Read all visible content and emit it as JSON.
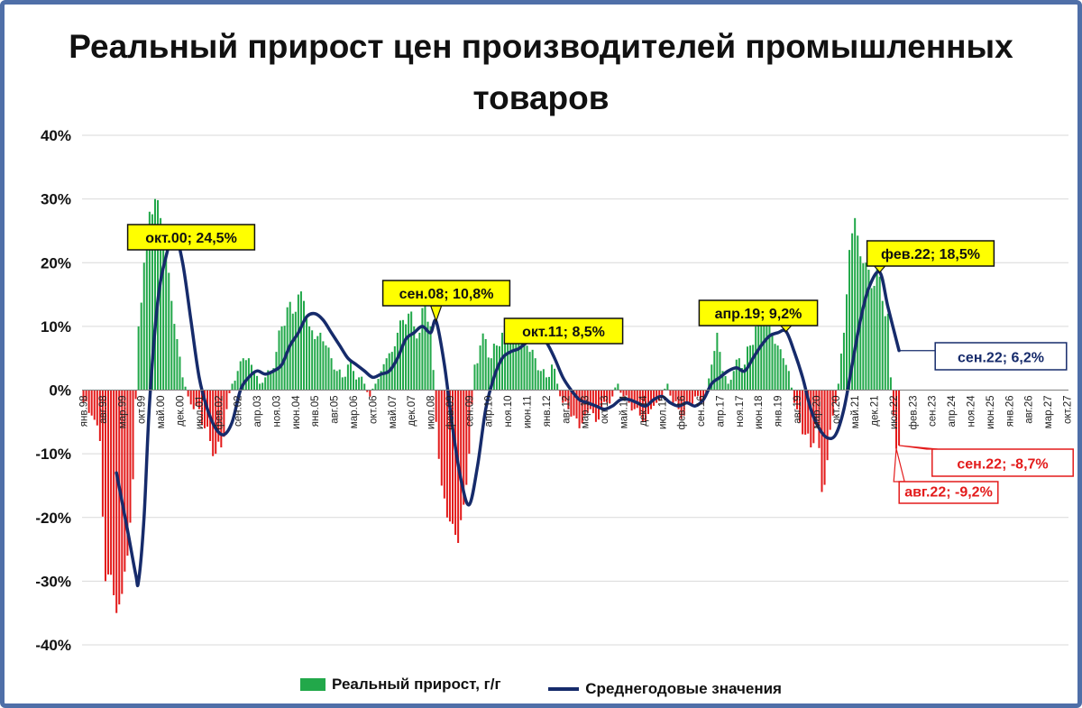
{
  "title": "Реальный прирост цен производителей промышленных товаров",
  "legend": {
    "bars_label": "Реальный прирост, г/г",
    "line_label": "Среднегодовые значения"
  },
  "colors": {
    "positive_bar": "#22a84a",
    "negative_bar": "#e31b1b",
    "line": "#162b6b",
    "callout_fill": "#ffff00",
    "grid": "#d9d9d9"
  },
  "chart_data": {
    "type": "bar+line",
    "title": "Реальный прирост цен производителей промышленных товаров",
    "yticks": [
      "40%",
      "30%",
      "20%",
      "10%",
      "0%",
      "-10%",
      "-20%",
      "-30%",
      "-40%"
    ],
    "ylim": [
      -40,
      40
    ],
    "grid": true,
    "legend_position": "bottom",
    "x_tick_labels": [
      "янв.98",
      "авг.98",
      "мар.99",
      "окт.99",
      "май.00",
      "дек.00",
      "июл.01",
      "фев.02",
      "сен.02",
      "апр.03",
      "ноя.03",
      "июн.04",
      "янв.05",
      "авг.05",
      "мар.06",
      "окт.06",
      "май.07",
      "дек.07",
      "июл.08",
      "фев.09",
      "сен.09",
      "апр.10",
      "ноя.10",
      "июн.11",
      "янв.12",
      "авг.12",
      "мар.13",
      "окт.13",
      "май.14",
      "дек.14",
      "июл.15",
      "фев.16",
      "сен.16",
      "апр.17",
      "ноя.17",
      "июн.18",
      "янв.19",
      "авг.19",
      "мар.20",
      "окт.20",
      "май.21",
      "дек.21",
      "июл.22",
      "фев.23",
      "сен.23",
      "апр.24",
      "ноя.24",
      "июн.25",
      "янв.26",
      "авг.26",
      "мар.27",
      "окт.27"
    ],
    "x_start": "1998-01",
    "series": [
      {
        "name": "Реальный прирост, г/г",
        "kind": "bar",
        "points": [
          [
            "1998-01",
            -2
          ],
          [
            "1998-04",
            -4
          ],
          [
            "1998-07",
            -8
          ],
          [
            "1998-09",
            -30
          ],
          [
            "1998-11",
            -29
          ],
          [
            "1999-01",
            -35
          ],
          [
            "1999-03",
            -32
          ],
          [
            "1999-05",
            -26
          ],
          [
            "1999-07",
            -14
          ],
          [
            "1999-09",
            10
          ],
          [
            "1999-11",
            20
          ],
          [
            "2000-01",
            28
          ],
          [
            "2000-03",
            30
          ],
          [
            "2000-05",
            27
          ],
          [
            "2000-07",
            21
          ],
          [
            "2000-09",
            14
          ],
          [
            "2000-11",
            8
          ],
          [
            "2001-01",
            2
          ],
          [
            "2001-03",
            -1
          ],
          [
            "2001-05",
            -3
          ],
          [
            "2001-07",
            -3
          ],
          [
            "2001-09",
            -6
          ],
          [
            "2001-11",
            -8
          ],
          [
            "2002-01",
            -10
          ],
          [
            "2002-03",
            -9
          ],
          [
            "2002-05",
            -3
          ],
          [
            "2002-07",
            1
          ],
          [
            "2002-09",
            3
          ],
          [
            "2002-11",
            5
          ],
          [
            "2003-01",
            5
          ],
          [
            "2003-03",
            3
          ],
          [
            "2003-05",
            1
          ],
          [
            "2003-07",
            2
          ],
          [
            "2003-09",
            3
          ],
          [
            "2003-11",
            6
          ],
          [
            "2004-01",
            10
          ],
          [
            "2004-03",
            13
          ],
          [
            "2004-05",
            12
          ],
          [
            "2004-07",
            15
          ],
          [
            "2004-09",
            14
          ],
          [
            "2004-11",
            10
          ],
          [
            "2005-01",
            8
          ],
          [
            "2005-03",
            9
          ],
          [
            "2005-05",
            7
          ],
          [
            "2005-07",
            5
          ],
          [
            "2005-09",
            3
          ],
          [
            "2005-11",
            2
          ],
          [
            "2006-01",
            4
          ],
          [
            "2006-03",
            3
          ],
          [
            "2006-05",
            2
          ],
          [
            "2006-07",
            1
          ],
          [
            "2006-09",
            -1
          ],
          [
            "2006-11",
            1
          ],
          [
            "2007-01",
            3
          ],
          [
            "2007-03",
            5
          ],
          [
            "2007-05",
            6
          ],
          [
            "2007-07",
            9
          ],
          [
            "2007-09",
            11
          ],
          [
            "2007-11",
            12
          ],
          [
            "2008-01",
            10
          ],
          [
            "2008-03",
            9
          ],
          [
            "2008-05",
            14
          ],
          [
            "2008-07",
            10
          ],
          [
            "2008-09",
            -5
          ],
          [
            "2008-11",
            -15
          ],
          [
            "2009-01",
            -20
          ],
          [
            "2009-03",
            -21
          ],
          [
            "2009-05",
            -24
          ],
          [
            "2009-07",
            -18
          ],
          [
            "2009-09",
            -10
          ],
          [
            "2009-11",
            4
          ],
          [
            "2010-01",
            7
          ],
          [
            "2010-03",
            8
          ],
          [
            "2010-05",
            5
          ],
          [
            "2010-07",
            7
          ],
          [
            "2010-09",
            9
          ],
          [
            "2010-11",
            10
          ],
          [
            "2011-01",
            9
          ],
          [
            "2011-03",
            8
          ],
          [
            "2011-05",
            9
          ],
          [
            "2011-07",
            6
          ],
          [
            "2011-09",
            5
          ],
          [
            "2011-11",
            3
          ],
          [
            "2012-01",
            2
          ],
          [
            "2012-03",
            4
          ],
          [
            "2012-05",
            1
          ],
          [
            "2012-07",
            -2
          ],
          [
            "2012-09",
            -3
          ],
          [
            "2012-11",
            -4
          ],
          [
            "2013-01",
            -6
          ],
          [
            "2013-03",
            -4
          ],
          [
            "2013-05",
            -3
          ],
          [
            "2013-07",
            -5
          ],
          [
            "2013-09",
            -3
          ],
          [
            "2013-11",
            -2
          ],
          [
            "2014-01",
            -1
          ],
          [
            "2014-03",
            1
          ],
          [
            "2014-05",
            -1
          ],
          [
            "2014-07",
            -2
          ],
          [
            "2014-09",
            -3
          ],
          [
            "2014-11",
            -4
          ],
          [
            "2015-01",
            -5
          ],
          [
            "2015-03",
            -3
          ],
          [
            "2015-05",
            -2
          ],
          [
            "2015-07",
            -1
          ],
          [
            "2015-09",
            1
          ],
          [
            "2015-11",
            -2
          ],
          [
            "2016-01",
            -3
          ],
          [
            "2016-03",
            -4
          ],
          [
            "2016-05",
            -2
          ],
          [
            "2016-07",
            -1
          ],
          [
            "2016-09",
            -2
          ],
          [
            "2016-11",
            -1
          ],
          [
            "2017-01",
            4
          ],
          [
            "2017-03",
            9
          ],
          [
            "2017-05",
            3
          ],
          [
            "2017-07",
            1
          ],
          [
            "2017-09",
            3
          ],
          [
            "2017-11",
            5
          ],
          [
            "2018-01",
            4
          ],
          [
            "2018-03",
            7
          ],
          [
            "2018-05",
            10
          ],
          [
            "2018-07",
            12
          ],
          [
            "2018-09",
            11
          ],
          [
            "2018-11",
            9
          ],
          [
            "2019-01",
            7
          ],
          [
            "2019-03",
            5
          ],
          [
            "2019-05",
            3
          ],
          [
            "2019-07",
            -2
          ],
          [
            "2019-09",
            -5
          ],
          [
            "2019-11",
            -7
          ],
          [
            "2020-01",
            -9
          ],
          [
            "2020-03",
            -5
          ],
          [
            "2020-05",
            -16
          ],
          [
            "2020-07",
            -11
          ],
          [
            "2020-09",
            -4
          ],
          [
            "2020-11",
            1
          ],
          [
            "2021-01",
            9
          ],
          [
            "2021-03",
            22
          ],
          [
            "2021-05",
            27
          ],
          [
            "2021-07",
            21
          ],
          [
            "2021-09",
            20
          ],
          [
            "2021-11",
            16
          ],
          [
            "2022-01",
            19
          ],
          [
            "2022-03",
            14
          ],
          [
            "2022-05",
            12
          ],
          [
            "2022-06",
            2
          ],
          [
            "2022-07",
            -4
          ],
          [
            "2022-08",
            -9.2
          ],
          [
            "2022-09",
            -8.7
          ]
        ]
      },
      {
        "name": "Среднегодовые значения",
        "kind": "line",
        "points": [
          [
            "1999-01",
            -13
          ],
          [
            "1999-05",
            -22
          ],
          [
            "1999-08",
            -29
          ],
          [
            "1999-09",
            -30
          ],
          [
            "1999-11",
            -20
          ],
          [
            "2000-01",
            -2
          ],
          [
            "2000-04",
            14
          ],
          [
            "2000-07",
            21
          ],
          [
            "2000-10",
            24.5
          ],
          [
            "2001-01",
            20
          ],
          [
            "2001-04",
            11
          ],
          [
            "2001-07",
            2
          ],
          [
            "2001-10",
            -3
          ],
          [
            "2002-01",
            -6
          ],
          [
            "2002-04",
            -7
          ],
          [
            "2002-07",
            -5
          ],
          [
            "2002-10",
            0
          ],
          [
            "2003-01",
            2
          ],
          [
            "2003-04",
            3
          ],
          [
            "2003-07",
            2.5
          ],
          [
            "2003-10",
            3
          ],
          [
            "2004-01",
            4
          ],
          [
            "2004-04",
            7
          ],
          [
            "2004-07",
            9
          ],
          [
            "2004-10",
            11.5
          ],
          [
            "2005-01",
            12
          ],
          [
            "2005-04",
            11
          ],
          [
            "2005-07",
            9
          ],
          [
            "2005-10",
            7
          ],
          [
            "2006-01",
            5
          ],
          [
            "2006-04",
            4
          ],
          [
            "2006-07",
            3
          ],
          [
            "2006-10",
            2
          ],
          [
            "2007-01",
            2.5
          ],
          [
            "2007-04",
            3
          ],
          [
            "2007-07",
            5
          ],
          [
            "2007-10",
            8
          ],
          [
            "2008-01",
            9
          ],
          [
            "2008-04",
            10
          ],
          [
            "2008-07",
            9
          ],
          [
            "2008-09",
            10.8
          ],
          [
            "2008-12",
            4
          ],
          [
            "2009-03",
            -6
          ],
          [
            "2009-06",
            -14
          ],
          [
            "2009-09",
            -18
          ],
          [
            "2009-12",
            -12
          ],
          [
            "2010-03",
            -3
          ],
          [
            "2010-06",
            2
          ],
          [
            "2010-09",
            5
          ],
          [
            "2010-12",
            6
          ],
          [
            "2011-03",
            6.5
          ],
          [
            "2011-06",
            7.5
          ],
          [
            "2011-10",
            8.5
          ],
          [
            "2012-01",
            7.5
          ],
          [
            "2012-04",
            5
          ],
          [
            "2012-07",
            2
          ],
          [
            "2012-10",
            0
          ],
          [
            "2013-01",
            -1.5
          ],
          [
            "2013-04",
            -2
          ],
          [
            "2013-07",
            -2.5
          ],
          [
            "2013-10",
            -3
          ],
          [
            "2014-01",
            -2.5
          ],
          [
            "2014-04",
            -1.5
          ],
          [
            "2014-07",
            -1.5
          ],
          [
            "2014-10",
            -2
          ],
          [
            "2015-01",
            -2.5
          ],
          [
            "2015-04",
            -1.5
          ],
          [
            "2015-07",
            -1
          ],
          [
            "2015-10",
            -2
          ],
          [
            "2016-01",
            -2.5
          ],
          [
            "2016-04",
            -2
          ],
          [
            "2016-07",
            -2.5
          ],
          [
            "2016-10",
            -1.5
          ],
          [
            "2017-01",
            1
          ],
          [
            "2017-04",
            2
          ],
          [
            "2017-07",
            3
          ],
          [
            "2017-10",
            3.5
          ],
          [
            "2018-01",
            3
          ],
          [
            "2018-04",
            5
          ],
          [
            "2018-07",
            7
          ],
          [
            "2018-10",
            8.5
          ],
          [
            "2019-01",
            9
          ],
          [
            "2019-04",
            9.2
          ],
          [
            "2019-07",
            6
          ],
          [
            "2019-10",
            2
          ],
          [
            "2020-01",
            -3
          ],
          [
            "2020-04",
            -6
          ],
          [
            "2020-07",
            -7.5
          ],
          [
            "2020-10",
            -7
          ],
          [
            "2021-01",
            -3
          ],
          [
            "2021-04",
            4
          ],
          [
            "2021-07",
            11
          ],
          [
            "2021-10",
            16
          ],
          [
            "2022-02",
            18.5
          ],
          [
            "2022-05",
            13
          ],
          [
            "2022-09",
            6.2
          ]
        ]
      }
    ],
    "annotations": [
      {
        "text": "окт.00; 24,5%",
        "date": "2000-10",
        "value": 24.5,
        "style": "yellow"
      },
      {
        "text": "сен.08; 10,8%",
        "date": "2008-09",
        "value": 10.8,
        "style": "yellow"
      },
      {
        "text": "окт.11; 8,5%",
        "date": "2011-10",
        "value": 8.5,
        "style": "yellow"
      },
      {
        "text": "апр.19; 9,2%",
        "date": "2019-04",
        "value": 9.2,
        "style": "yellow"
      },
      {
        "text": "фев.22; 18,5%",
        "date": "2022-02",
        "value": 18.5,
        "style": "yellow"
      },
      {
        "text": "сен.22; 6,2%",
        "date": "2022-09",
        "value": 6.2,
        "style": "blue"
      },
      {
        "text": "сен.22; -8,7%",
        "date": "2022-09",
        "value": -8.7,
        "style": "red"
      },
      {
        "text": "авг.22; -9,2%",
        "date": "2022-08",
        "value": -9.2,
        "style": "red-small"
      }
    ]
  }
}
